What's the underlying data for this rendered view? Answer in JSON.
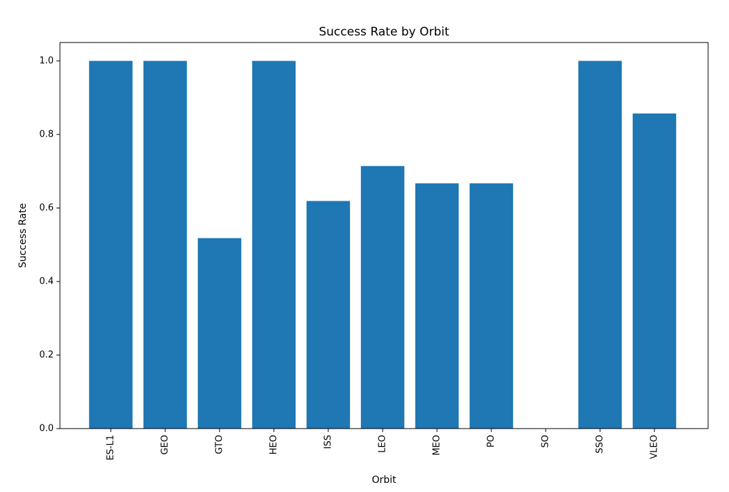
{
  "chart_data": {
    "type": "bar",
    "title": "Success Rate by Orbit",
    "xlabel": "Orbit",
    "ylabel": "Success Rate",
    "categories": [
      "ES-L1",
      "GEO",
      "GTO",
      "HEO",
      "ISS",
      "LEO",
      "MEO",
      "PO",
      "SO",
      "SSO",
      "VLEO"
    ],
    "values": [
      1.0,
      1.0,
      0.518,
      1.0,
      0.619,
      0.714,
      0.667,
      0.667,
      0.0,
      1.0,
      0.857
    ],
    "ylim": [
      0,
      1.05
    ],
    "yticks": [
      0.0,
      0.2,
      0.4,
      0.6,
      0.8,
      1.0
    ],
    "ytick_labels": [
      "0.0",
      "0.2",
      "0.4",
      "0.6",
      "0.8",
      "1.0"
    ],
    "bar_color": "#1f77b4",
    "grid": false,
    "legend": "none"
  }
}
